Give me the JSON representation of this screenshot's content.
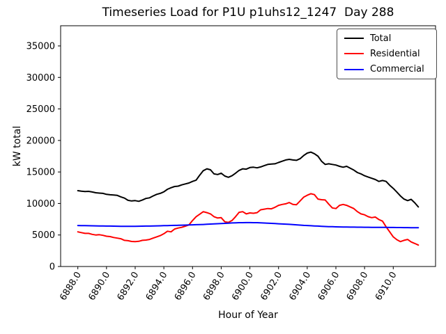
{
  "figure": {
    "title": "Timeseries Load for P1U p1uhs12_1247  Day 288",
    "xlabel": "Hour of Year",
    "ylabel": "kW total"
  },
  "legend": {
    "position": "upper right",
    "entries": [
      {
        "label": "Total",
        "color": "#000000"
      },
      {
        "label": "Residential",
        "color": "#ff0000"
      },
      {
        "label": "Commercial",
        "color": "#0000ff"
      }
    ]
  },
  "chart_data": {
    "type": "line",
    "title": "Timeseries Load for P1U p1uhs12_1247  Day 288",
    "xlabel": "Hour of Year",
    "ylabel": "kW total",
    "xlim": [
      6886.8,
      6912.95
    ],
    "ylim": [
      0,
      38200
    ],
    "grid": false,
    "legend_position": "upper right",
    "xticks": {
      "values": [
        6888,
        6890,
        6892,
        6894,
        6896,
        6898,
        6900,
        6902,
        6904,
        6906,
        6908,
        6910
      ],
      "labels": [
        "6888.0",
        "6890.0",
        "6892.0",
        "6894.0",
        "6896.0",
        "6898.0",
        "6900.0",
        "6902.0",
        "6904.0",
        "6906.0",
        "6908.0",
        "6910.0"
      ]
    },
    "yticks": {
      "values": [
        0,
        5000,
        10000,
        15000,
        20000,
        25000,
        30000,
        35000
      ],
      "labels": [
        "0",
        "5000",
        "10000",
        "15000",
        "20000",
        "25000",
        "30000",
        "35000"
      ]
    },
    "x_start": 6888.0,
    "x_step": 0.25,
    "series": [
      {
        "name": "Total",
        "color": "#000000",
        "values": [
          12030,
          11950,
          11900,
          11920,
          11820,
          11700,
          11650,
          11600,
          11450,
          11380,
          11350,
          11280,
          11050,
          10850,
          10500,
          10400,
          10450,
          10350,
          10550,
          10800,
          10900,
          11200,
          11450,
          11600,
          11850,
          12250,
          12500,
          12700,
          12750,
          12950,
          13100,
          13250,
          13500,
          13700,
          14500,
          15200,
          15500,
          15350,
          14700,
          14600,
          14800,
          14350,
          14150,
          14400,
          14800,
          15250,
          15500,
          15450,
          15700,
          15750,
          15650,
          15800,
          16000,
          16200,
          16250,
          16300,
          16500,
          16700,
          16900,
          17000,
          16900,
          16850,
          17100,
          17600,
          18000,
          18150,
          17900,
          17500,
          16700,
          16200,
          16300,
          16200,
          16100,
          15900,
          15750,
          15900,
          15600,
          15300,
          14900,
          14700,
          14400,
          14200,
          14000,
          13800,
          13500,
          13650,
          13500,
          12900,
          12400,
          11800,
          11200,
          10700,
          10450,
          10650,
          10100,
          9450
        ]
      },
      {
        "name": "Residential",
        "color": "#ff0000",
        "values": [
          5500,
          5380,
          5250,
          5250,
          5100,
          5000,
          5050,
          4950,
          4800,
          4750,
          4600,
          4500,
          4400,
          4150,
          4100,
          3980,
          3950,
          4000,
          4150,
          4200,
          4300,
          4500,
          4700,
          4900,
          5200,
          5600,
          5500,
          5950,
          6100,
          6220,
          6400,
          6600,
          7300,
          7900,
          8300,
          8700,
          8550,
          8350,
          7900,
          7700,
          7750,
          7100,
          7000,
          7300,
          7900,
          8600,
          8700,
          8350,
          8500,
          8450,
          8550,
          9000,
          9100,
          9200,
          9150,
          9400,
          9700,
          9850,
          9950,
          10150,
          9850,
          9800,
          10400,
          11000,
          11300,
          11550,
          11400,
          10700,
          10600,
          10550,
          9900,
          9300,
          9200,
          9700,
          9850,
          9700,
          9450,
          9200,
          8700,
          8350,
          8200,
          7900,
          7750,
          7850,
          7450,
          7200,
          6300,
          5500,
          4700,
          4250,
          3950,
          4150,
          4300,
          3900,
          3650,
          3400
        ]
      },
      {
        "name": "Commercial",
        "color": "#0000ff",
        "values": [
          6500,
          6490,
          6480,
          6470,
          6460,
          6450,
          6440,
          6430,
          6420,
          6410,
          6400,
          6390,
          6385,
          6380,
          6380,
          6380,
          6385,
          6390,
          6400,
          6410,
          6420,
          6430,
          6445,
          6460,
          6480,
          6495,
          6510,
          6525,
          6540,
          6555,
          6570,
          6590,
          6610,
          6630,
          6650,
          6670,
          6700,
          6730,
          6760,
          6790,
          6820,
          6850,
          6880,
          6910,
          6930,
          6950,
          6960,
          6970,
          6970,
          6960,
          6950,
          6930,
          6900,
          6870,
          6840,
          6810,
          6780,
          6750,
          6720,
          6690,
          6650,
          6610,
          6570,
          6530,
          6500,
          6470,
          6440,
          6410,
          6380,
          6350,
          6330,
          6310,
          6290,
          6280,
          6270,
          6260,
          6250,
          6245,
          6240,
          6235,
          6230,
          6225,
          6220,
          6215,
          6210,
          6205,
          6200,
          6195,
          6190,
          6185,
          6180,
          6175,
          6170,
          6165,
          6155,
          6150
        ]
      }
    ]
  }
}
